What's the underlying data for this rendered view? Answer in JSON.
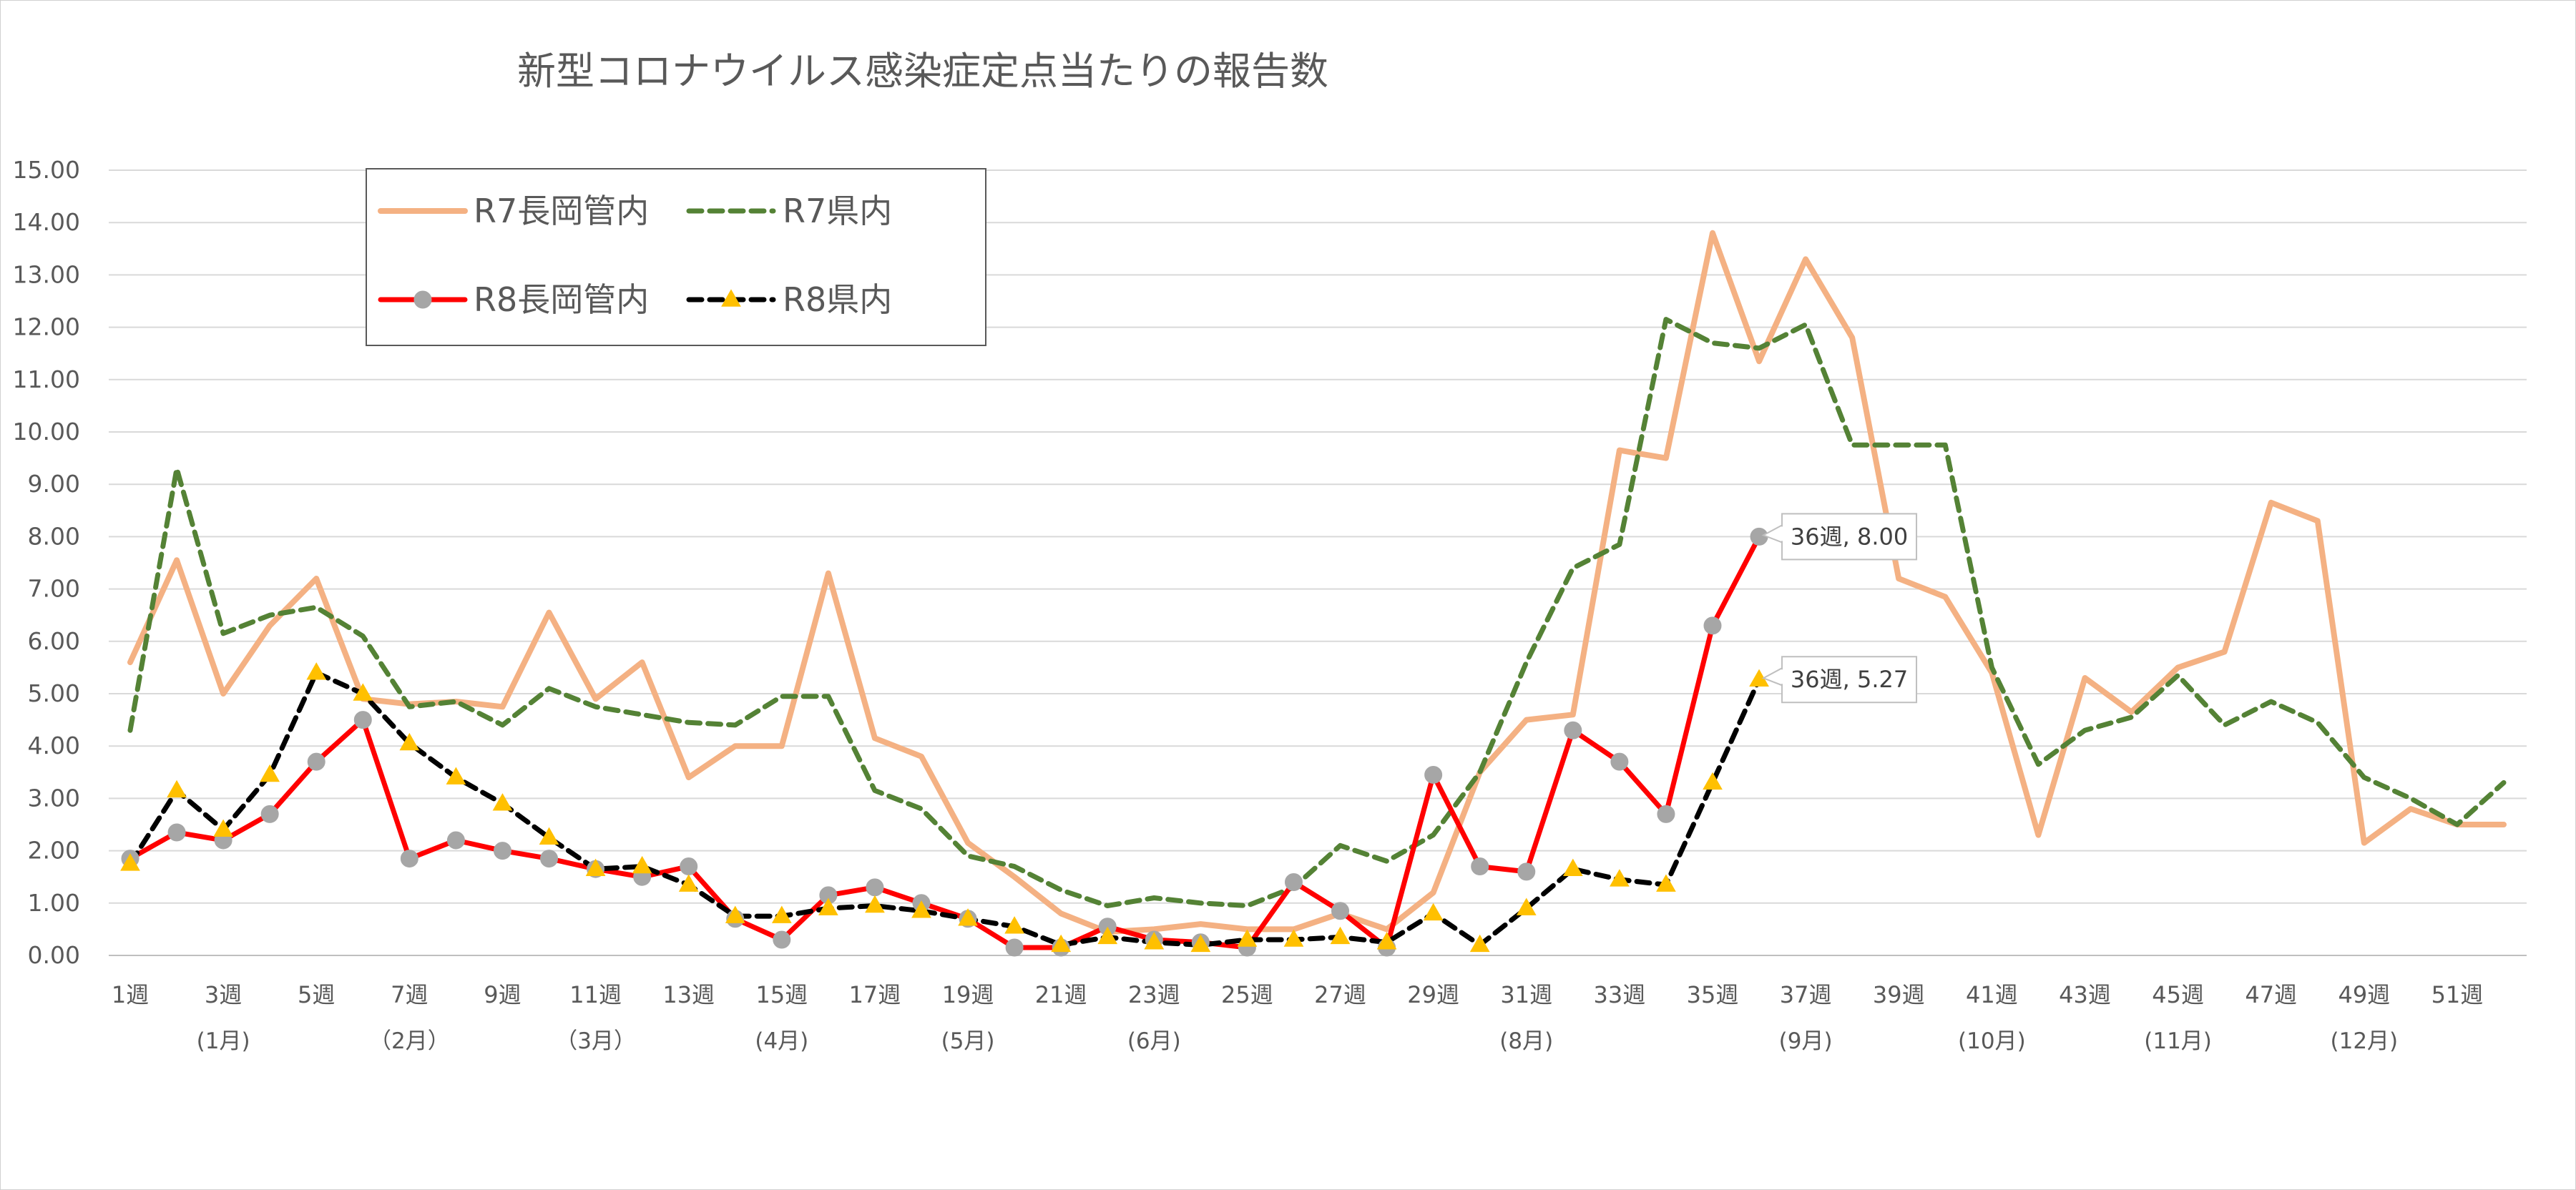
{
  "chart_data": {
    "type": "line",
    "title": "新型コロナウイルス感染症定点当たりの報告数",
    "xlabel": "",
    "ylabel": "",
    "ylim": [
      0,
      15
    ],
    "yticks": [
      "0.00",
      "1.00",
      "2.00",
      "3.00",
      "4.00",
      "5.00",
      "6.00",
      "7.00",
      "8.00",
      "9.00",
      "10.00",
      "11.00",
      "12.00",
      "13.00",
      "14.00",
      "15.00"
    ],
    "weeks": [
      1,
      2,
      3,
      4,
      5,
      6,
      7,
      8,
      9,
      10,
      11,
      12,
      13,
      14,
      15,
      16,
      17,
      18,
      19,
      20,
      21,
      22,
      23,
      24,
      25,
      26,
      27,
      28,
      29,
      30,
      31,
      32,
      33,
      34,
      35,
      36,
      37,
      38,
      39,
      40,
      41,
      42,
      43,
      44,
      45,
      46,
      47,
      48,
      49,
      50,
      51,
      52
    ],
    "xtick_labels": [
      "1週",
      "3週",
      "5週",
      "7週",
      "9週",
      "11週",
      "13週",
      "15週",
      "17週",
      "19週",
      "21週",
      "23週",
      "25週",
      "27週",
      "29週",
      "31週",
      "33週",
      "35週",
      "37週",
      "39週",
      "41週",
      "43週",
      "45週",
      "47週",
      "49週",
      "51週"
    ],
    "month_labels": [
      {
        "week": 3,
        "label": "(1月)"
      },
      {
        "week": 7,
        "label": "（2月）"
      },
      {
        "week": 11,
        "label": "（3月）"
      },
      {
        "week": 15,
        "label": "(4月)"
      },
      {
        "week": 19,
        "label": "(5月)"
      },
      {
        "week": 23,
        "label": "(6月)"
      },
      {
        "week": 31,
        "label": "(8月)"
      },
      {
        "week": 37,
        "label": "(9月)"
      },
      {
        "week": 41,
        "label": "(10月)"
      },
      {
        "week": 45,
        "label": "(11月)"
      },
      {
        "week": 49,
        "label": "(12月)"
      }
    ],
    "series": [
      {
        "name": "R7長岡管内",
        "color": "#F4B183",
        "style": "solid",
        "marker": "none",
        "values": [
          5.6,
          7.55,
          5.0,
          6.3,
          7.2,
          4.9,
          4.8,
          4.85,
          4.75,
          6.55,
          4.9,
          5.6,
          3.4,
          4.0,
          4.0,
          7.3,
          4.15,
          3.8,
          2.15,
          1.5,
          0.8,
          0.45,
          0.5,
          0.6,
          0.5,
          0.5,
          0.8,
          0.5,
          1.2,
          3.5,
          4.5,
          4.6,
          9.65,
          9.5,
          13.8,
          11.35,
          13.3,
          11.8,
          7.2,
          6.85,
          5.4,
          2.3,
          5.3,
          4.65,
          5.5,
          5.8,
          8.65,
          8.3,
          2.15,
          2.8,
          2.5,
          2.5
        ]
      },
      {
        "name": "R7県内",
        "color": "#548235",
        "style": "dashed",
        "marker": "none",
        "values": [
          4.3,
          9.3,
          6.15,
          6.5,
          6.65,
          6.1,
          4.75,
          4.85,
          4.4,
          5.1,
          4.75,
          4.6,
          4.45,
          4.4,
          4.95,
          4.95,
          3.15,
          2.8,
          1.9,
          1.7,
          1.25,
          0.95,
          1.1,
          1.0,
          0.95,
          1.3,
          2.1,
          1.8,
          2.3,
          3.5,
          5.6,
          7.4,
          7.85,
          12.15,
          11.7,
          11.6,
          12.05,
          9.75,
          9.75,
          9.75,
          5.5,
          3.65,
          4.3,
          4.55,
          5.35,
          4.4,
          4.85,
          4.45,
          3.4,
          3.0,
          2.5,
          3.3
        ]
      },
      {
        "name": "R8長岡管内",
        "color": "#FF0000",
        "style": "solid",
        "marker": "circle",
        "values": [
          1.85,
          2.35,
          2.2,
          2.7,
          3.7,
          4.5,
          1.85,
          2.2,
          2.0,
          1.85,
          1.65,
          1.5,
          1.7,
          0.7,
          0.3,
          1.15,
          1.3,
          1.0,
          0.7,
          0.15,
          0.15,
          0.55,
          0.3,
          0.25,
          0.15,
          1.4,
          0.85,
          0.15,
          3.45,
          1.7,
          1.6,
          4.3,
          3.7,
          2.7,
          6.3,
          8.0
        ]
      },
      {
        "name": "R8県内",
        "color": "#000000",
        "style": "dashed",
        "marker": "triangle",
        "values": [
          1.75,
          3.15,
          2.4,
          3.45,
          5.4,
          5.0,
          4.05,
          3.4,
          2.9,
          2.25,
          1.65,
          1.7,
          1.35,
          0.75,
          0.75,
          0.9,
          0.95,
          0.85,
          0.7,
          0.55,
          0.2,
          0.35,
          0.25,
          0.2,
          0.3,
          0.3,
          0.35,
          0.25,
          0.8,
          0.2,
          0.9,
          1.65,
          1.45,
          1.35,
          3.3,
          5.27
        ]
      }
    ],
    "annotations": [
      {
        "series": "R8長岡管内",
        "week": 36,
        "label": "36週, 8.00"
      },
      {
        "series": "R8県内",
        "week": 36,
        "label": "36週, 5.27"
      }
    ],
    "legend": {
      "placement": "top-left"
    },
    "grid": true
  }
}
